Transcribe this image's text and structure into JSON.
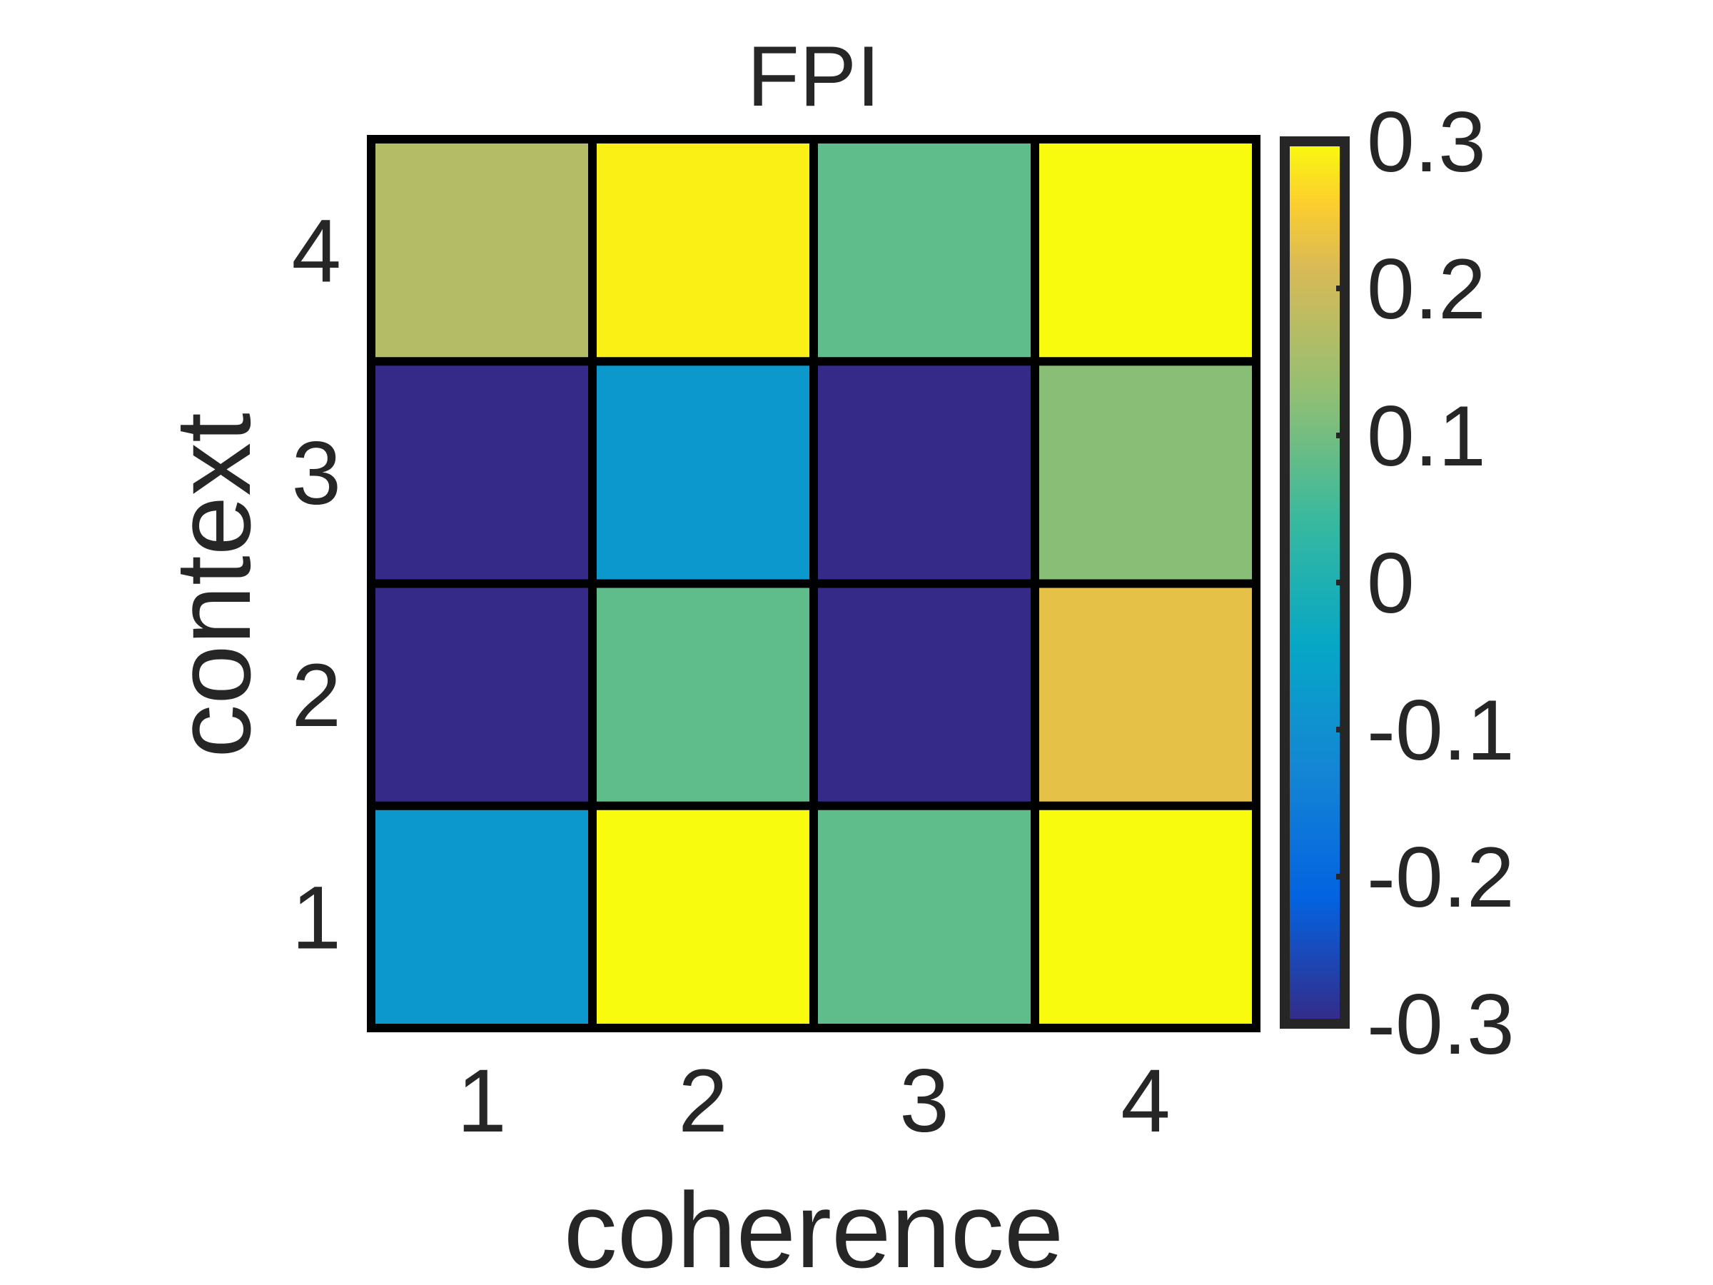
{
  "chart_data": {
    "type": "heatmap",
    "title": "FPI",
    "xlabel": "coherence",
    "ylabel": "context",
    "x_categories": [
      "1",
      "2",
      "3",
      "4"
    ],
    "y_categories": [
      "1",
      "2",
      "3",
      "4"
    ],
    "values": [
      [
        -0.08,
        0.3,
        0.08,
        0.3
      ],
      [
        -0.3,
        0.08,
        -0.3,
        0.23
      ],
      [
        -0.3,
        -0.08,
        -0.3,
        0.12
      ],
      [
        0.17,
        0.29,
        0.08,
        0.3
      ]
    ],
    "color_range": [
      -0.3,
      0.3
    ],
    "colorbar": {
      "ticks": [
        0.3,
        0.2,
        0.1,
        0,
        -0.1,
        -0.2,
        -0.3
      ],
      "tick_labels": [
        "0.3",
        "0.2",
        "0.1",
        "0",
        "-0.1",
        "-0.2",
        "-0.3"
      ]
    },
    "colormap": "parula",
    "grid_color": "#000000"
  }
}
